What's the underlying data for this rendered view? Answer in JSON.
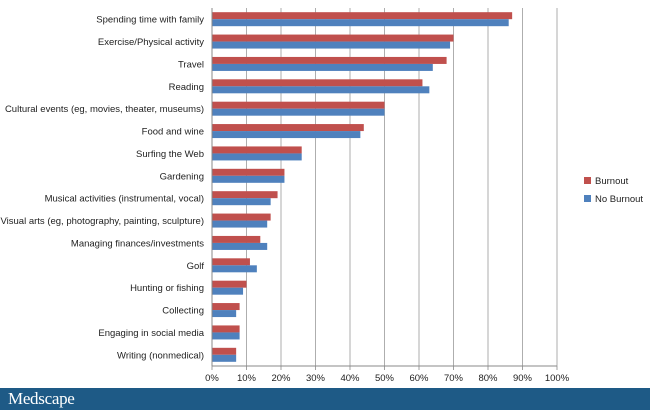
{
  "chart_data": {
    "type": "bar",
    "orientation": "horizontal",
    "title": "",
    "xlabel": "",
    "ylabel": "",
    "categories": [
      "Spending time with family",
      "Exercise/Physical activity",
      "Travel",
      "Reading",
      "Cultural events (eg, movies, theater, museums)",
      "Food and wine",
      "Surfing the Web",
      "Gardening",
      "Musical activities (instrumental, vocal)",
      "Visual arts (eg, photography, painting, sculpture)",
      "Managing finances/investments",
      "Golf",
      "Hunting or fishing",
      "Collecting",
      "Engaging in social media",
      "Writing (nonmedical)"
    ],
    "series": [
      {
        "name": "Burnout",
        "color": "#c0504d",
        "values": [
          87,
          70,
          68,
          61,
          50,
          44,
          26,
          21,
          19,
          17,
          14,
          11,
          10,
          8,
          8,
          7
        ]
      },
      {
        "name": "No Burnout",
        "color": "#4f81bd",
        "values": [
          86,
          69,
          64,
          63,
          50,
          43,
          26,
          21,
          17,
          16,
          16,
          13,
          9,
          7,
          8,
          7
        ]
      }
    ],
    "xlim": [
      0,
      100
    ],
    "x_ticks": [
      "0%",
      "10%",
      "20%",
      "30%",
      "40%",
      "50%",
      "60%",
      "70%",
      "80%",
      "90%",
      "100%"
    ],
    "grid": "vertical",
    "legend": "right"
  },
  "footer": {
    "brand": "Medscape"
  }
}
